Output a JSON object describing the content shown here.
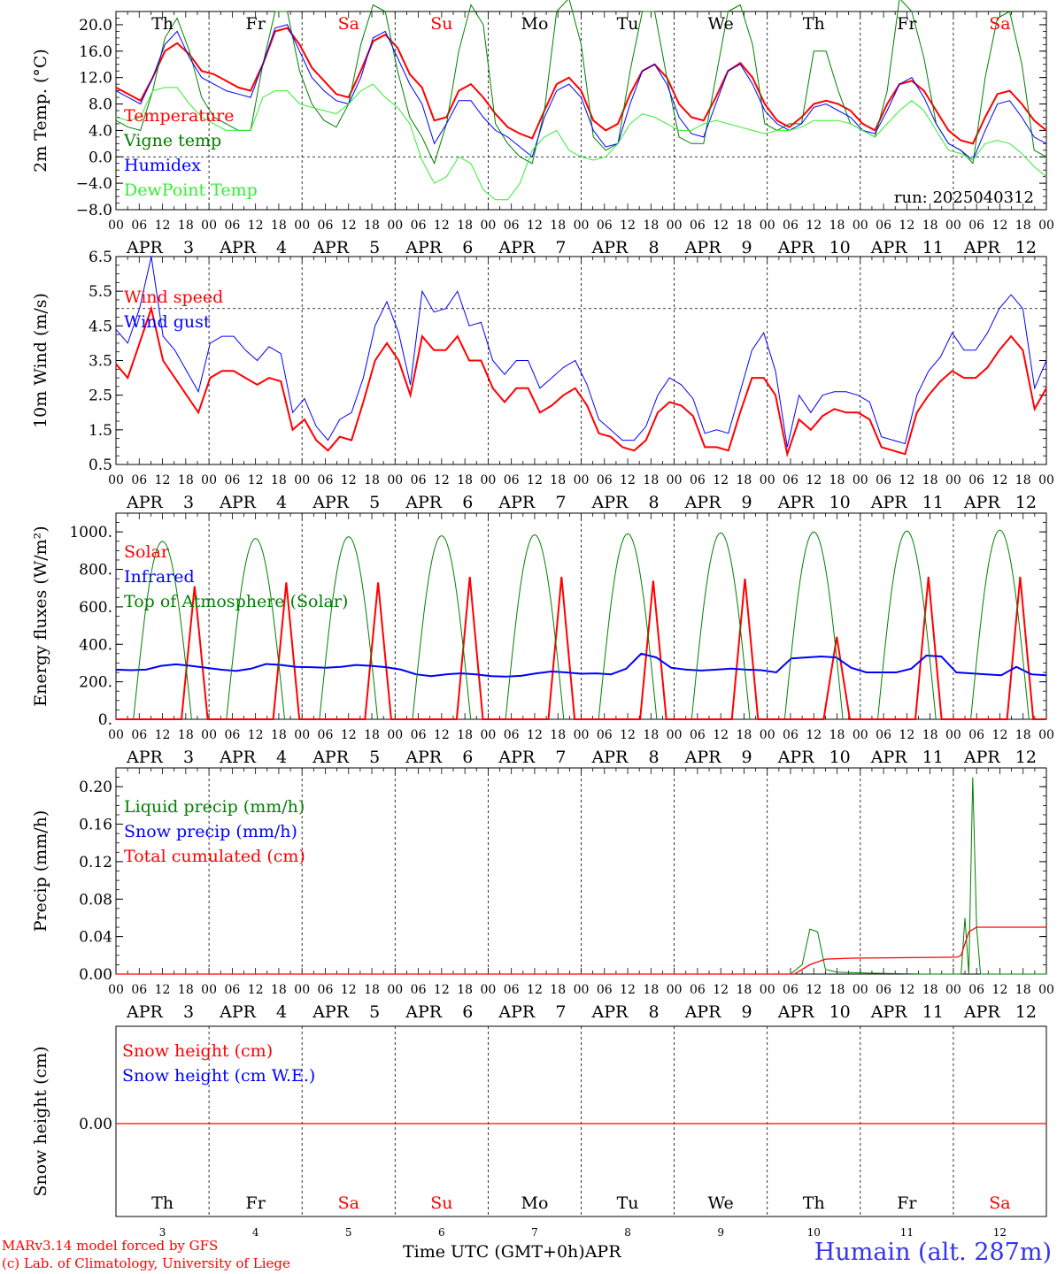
{
  "run_label": "run: 2025040312",
  "day_names": [
    "Th",
    "Fr",
    "Sa",
    "Su",
    "Mo",
    "Tu",
    "We",
    "Th",
    "Fr",
    "Sa"
  ],
  "weekend_flags": [
    false,
    false,
    true,
    true,
    false,
    false,
    false,
    false,
    false,
    true
  ],
  "date_month": "APR",
  "date_days": [
    "3",
    "4",
    "5",
    "6",
    "7",
    "8",
    "9",
    "10",
    "11",
    "12"
  ],
  "hour_ticks": [
    "00",
    "06",
    "12",
    "18"
  ],
  "footer": {
    "model_line": "MARv3.14 model forced by GFS",
    "lab_line": "(c) Lab. of Climatology, University of Liege",
    "time_axis": "Time UTC (GMT+0h)",
    "month_label": "APR",
    "station": "Humain (alt. 287m)"
  },
  "colors": {
    "red": "#ff0000",
    "green": "#008000",
    "blue": "#0000ff",
    "lightgreen": "#33ee33",
    "weekend": "#ff0000"
  },
  "chart_data": [
    {
      "type": "line",
      "ylabel": "2m Temp. (°C)",
      "ylim": [
        -8,
        22
      ],
      "yticks": [
        "20.0",
        "16.0",
        "12.0",
        "8.0",
        "4.0",
        "0.0",
        "−4.0",
        "−8.0"
      ],
      "ytick_values": [
        20,
        16,
        12,
        8,
        4,
        0,
        -4,
        -8
      ],
      "ref_line": 0,
      "x_step_hours": 6,
      "series": [
        {
          "name": "Temperature",
          "color": "red",
          "width": 2,
          "values": [
            10.5,
            9.5,
            8.5,
            12,
            16,
            17.2,
            15.5,
            13,
            12.5,
            11.5,
            10.5,
            10,
            14,
            19,
            19.5,
            17,
            13.5,
            11.5,
            9.5,
            9,
            13,
            17.5,
            18.5,
            16.5,
            12.5,
            10.5,
            5.5,
            6,
            10,
            11,
            9,
            6.5,
            4.5,
            3.5,
            2.8,
            7,
            11,
            12,
            10,
            5.5,
            4,
            5,
            9.5,
            13,
            14,
            12,
            8,
            6,
            5.5,
            9,
            13,
            14.2,
            12,
            8,
            5.5,
            4.5,
            6,
            8,
            8.5,
            8,
            7,
            5,
            4,
            8,
            11,
            11.5,
            10,
            7,
            4,
            2.5,
            2,
            6,
            9.5,
            10,
            8,
            5.5,
            4
          ]
        },
        {
          "name": "Vigne temp",
          "color": "green",
          "width": 1,
          "values": [
            5.5,
            4.5,
            4,
            10,
            18,
            21,
            16,
            9,
            6,
            5,
            4,
            4,
            14,
            22,
            22,
            13,
            8,
            5.5,
            4.5,
            8,
            17,
            23,
            22,
            13,
            6,
            3,
            -1,
            5,
            16,
            23,
            20,
            5,
            2,
            0,
            -1,
            7,
            22,
            24,
            17,
            3,
            1,
            2,
            13,
            22,
            22,
            12,
            3,
            2,
            2,
            12,
            22,
            23,
            17,
            5,
            4,
            5,
            5,
            16,
            16,
            10,
            5,
            4,
            3,
            10,
            24,
            22,
            15,
            5,
            2,
            1,
            -1,
            12,
            21,
            22,
            14,
            1,
            0
          ]
        },
        {
          "name": "Humidex",
          "color": "blue",
          "width": 1,
          "values": [
            10,
            9,
            8,
            12,
            17,
            19,
            15,
            12,
            11,
            10,
            9.5,
            9,
            14,
            19.5,
            20,
            16,
            12,
            10,
            8.5,
            8,
            12,
            18,
            19,
            15,
            11,
            8,
            2,
            5,
            8.5,
            8.5,
            6,
            4,
            3,
            1.5,
            0,
            6,
            10,
            11,
            9,
            4,
            1.5,
            2,
            8,
            13,
            14,
            11,
            6,
            3.5,
            3,
            8,
            13,
            14,
            11,
            7,
            5,
            4,
            5,
            7.5,
            8,
            7,
            6,
            4,
            3.5,
            7,
            11,
            12,
            9,
            5,
            2,
            1,
            -0.5,
            4,
            8,
            8.5,
            6,
            3,
            2
          ]
        },
        {
          "name": "DewPoint Temp",
          "color": "lightgreen",
          "width": 1,
          "values": [
            6,
            5.5,
            6,
            10,
            10.5,
            10.5,
            8,
            6,
            5,
            4,
            4,
            4,
            9,
            10,
            10,
            8,
            7.5,
            7,
            6.5,
            8,
            10,
            11,
            9,
            7.5,
            5,
            -0.5,
            -4,
            -3,
            0,
            -1,
            -5,
            -6.5,
            -6.5,
            -4,
            1,
            3,
            4,
            1,
            0,
            -0.5,
            0,
            2,
            5,
            6.5,
            6,
            5,
            4,
            4,
            5,
            5.5,
            5,
            4.5,
            4,
            3.5,
            4,
            4,
            4.5,
            5.5,
            5.5,
            5.5,
            5,
            4,
            3,
            5,
            7,
            8.5,
            7,
            4,
            1,
            0.5,
            -0.5,
            2,
            2.5,
            2,
            0.5,
            -1.5,
            -3
          ]
        }
      ]
    },
    {
      "type": "line",
      "ylabel": "10m Wind (m/s)",
      "ylim": [
        0.5,
        6.5
      ],
      "yticks": [
        "6.5",
        "5.5",
        "4.5",
        "3.5",
        "2.5",
        "1.5",
        "0.5"
      ],
      "ytick_values": [
        6.5,
        5.5,
        4.5,
        3.5,
        2.5,
        1.5,
        0.5
      ],
      "ref_line": 5,
      "x_step_hours": 6,
      "series": [
        {
          "name": "Wind speed",
          "color": "red",
          "width": 2,
          "values": [
            3.4,
            3,
            4,
            5,
            3.5,
            3,
            2.5,
            2,
            3,
            3.2,
            3.2,
            3,
            2.8,
            3,
            2.9,
            1.5,
            1.8,
            1.2,
            0.9,
            1.3,
            1.2,
            2.3,
            3.5,
            4,
            3.5,
            2.5,
            4.2,
            3.8,
            3.8,
            4.2,
            3.5,
            3.5,
            2.7,
            2.3,
            2.7,
            2.7,
            2,
            2.2,
            2.5,
            2.7,
            2.2,
            1.4,
            1.3,
            1,
            0.9,
            1.2,
            2,
            2.3,
            2.2,
            1.9,
            1,
            1,
            0.9,
            2,
            3,
            3,
            2.5,
            0.8,
            1.8,
            1.5,
            1.9,
            2.1,
            2,
            2,
            1.8,
            1,
            0.9,
            0.8,
            2,
            2.5,
            2.9,
            3.2,
            3,
            3,
            3.3,
            3.8,
            4.2,
            3.8,
            2.1,
            2.7
          ]
        },
        {
          "name": "Wind gust",
          "color": "blue",
          "width": 1,
          "values": [
            4.4,
            4,
            5,
            6.5,
            4.2,
            3.8,
            3.2,
            2.6,
            4,
            4.2,
            4.2,
            3.8,
            3.5,
            3.9,
            3.7,
            2,
            2.4,
            1.6,
            1.2,
            1.8,
            2,
            3,
            4.5,
            5.2,
            4.3,
            2.8,
            5.5,
            4.9,
            5,
            5.5,
            4.5,
            4.6,
            3.5,
            3.1,
            3.5,
            3.5,
            2.7,
            3,
            3.3,
            3.5,
            2.8,
            1.8,
            1.5,
            1.2,
            1.2,
            1.6,
            2.5,
            3,
            2.8,
            2.4,
            1.4,
            1.5,
            1.4,
            2.6,
            3.8,
            4.3,
            3.2,
            1,
            2.5,
            2,
            2.5,
            2.6,
            2.6,
            2.5,
            2.3,
            1.3,
            1.2,
            1.1,
            2.5,
            3.2,
            3.6,
            4.3,
            3.8,
            3.8,
            4.3,
            5,
            5.4,
            5,
            2.7,
            3.5
          ]
        }
      ]
    },
    {
      "type": "line",
      "ylabel": "Energy fluxes (W/m²)",
      "ylim": [
        0,
        1100
      ],
      "yticks": [
        "1000.",
        "800.",
        "600.",
        "400.",
        "200.",
        "0."
      ],
      "ytick_values": [
        1000,
        800,
        600,
        400,
        200,
        0
      ],
      "x_step_hours": 6,
      "series": [
        {
          "name": "Solar",
          "color": "red",
          "width": 2,
          "values": [
            0,
            0,
            0,
            0,
            0,
            0,
            710,
            0,
            0,
            0,
            0,
            0,
            0,
            730,
            0,
            0,
            0,
            0,
            0,
            0,
            730,
            0,
            0,
            0,
            0,
            0,
            0,
            760,
            0,
            0,
            0,
            0,
            0,
            0,
            760,
            0,
            0,
            0,
            0,
            0,
            0,
            740,
            0,
            0,
            0,
            0,
            0,
            0,
            750,
            0,
            0,
            0,
            0,
            0,
            0,
            440,
            0,
            0,
            0,
            0,
            0,
            0,
            760,
            0,
            0,
            0,
            0,
            0,
            0,
            760,
            0,
            0
          ]
        },
        {
          "name": "Infrared",
          "color": "blue",
          "width": 2,
          "values": [
            265,
            262,
            265,
            285,
            293,
            285,
            275,
            265,
            258,
            270,
            295,
            290,
            280,
            278,
            275,
            280,
            290,
            285,
            278,
            265,
            240,
            230,
            240,
            245,
            240,
            230,
            228,
            232,
            245,
            255,
            250,
            243,
            245,
            240,
            270,
            350,
            330,
            275,
            265,
            260,
            265,
            270,
            265,
            262,
            250,
            325,
            330,
            335,
            330,
            275,
            250,
            250,
            250,
            270,
            340,
            335,
            250,
            245,
            240,
            235,
            280,
            240,
            235
          ]
        },
        {
          "name": "Top of Atmosphere (Solar)",
          "color": "green",
          "width": 1,
          "values": []
        }
      ]
    },
    {
      "type": "line",
      "ylabel": "Precip (mm/h)",
      "ylim": [
        0,
        0.22
      ],
      "yticks": [
        "0.20",
        "0.16",
        "0.12",
        "0.08",
        "0.04",
        "0.00"
      ],
      "ytick_values": [
        0.2,
        0.16,
        0.12,
        0.08,
        0.04,
        0
      ],
      "x_step_hours": 6,
      "series": [
        {
          "name": "Liquid precip (mm/h)",
          "color": "green",
          "width": 1
        },
        {
          "name": "Snow precip (mm/h)",
          "color": "blue",
          "width": 1
        },
        {
          "name": "Total cumulated (cm)",
          "color": "red",
          "width": 1
        }
      ]
    },
    {
      "type": "line",
      "ylabel": "Snow height (cm)",
      "ytick_values": [
        0
      ],
      "yticks": [
        "0.00"
      ],
      "series": [
        {
          "name": "Snow height (cm)",
          "color": "red",
          "width": 1
        },
        {
          "name": "Snow height (cm W.E.)",
          "color": "blue",
          "width": 1
        }
      ]
    }
  ]
}
